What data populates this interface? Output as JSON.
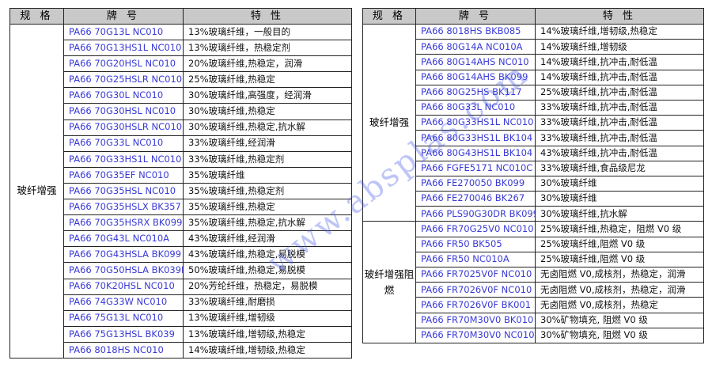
{
  "headers": {
    "spec": "规 格",
    "grade": "牌 号",
    "property": "特 性"
  },
  "left": {
    "category": "玻纤增强",
    "rows": [
      [
        "PA66 70G13L NC010",
        "13%玻璃纤维，一般目的"
      ],
      [
        "PA66 70G13HS1L NC010",
        "13%玻璃纤维，热稳定剂"
      ],
      [
        "PA66 70G20HSL NC010",
        "20%玻璃纤维,热稳定，润滑"
      ],
      [
        "PA66 70G25HSLR NC010",
        "25%玻璃纤维,热稳定"
      ],
      [
        "PA66 70G30L NC010",
        "30%玻璃纤维,高强度，经润滑"
      ],
      [
        "PA66 70G30HSL NC010",
        "30%玻璃纤维,热稳定"
      ],
      [
        "PA66 70G30HSLR NC010",
        "30%玻璃纤维,热稳定,抗水解"
      ],
      [
        "PA66 70G33L NC010",
        "33%玻璃纤维,经润滑"
      ],
      [
        "PA66 70G33HS1L NC010",
        "33%玻璃纤维,热稳定剂"
      ],
      [
        "PA66 70G35EF NC010",
        "35%玻璃纤维"
      ],
      [
        "PA66 70G35HSL NC010",
        "35%玻璃纤维,热稳定剂"
      ],
      [
        "PA66 70G35HSLX BK357",
        "35%玻璃纤维,热稳定"
      ],
      [
        "PA66 70G35HSRX BK099",
        "35%玻璃纤维,热稳定,抗水解"
      ],
      [
        "PA66 70G43L NC010A",
        "43%玻璃纤维,经润滑"
      ],
      [
        "PA66 70G43HSLA BK099",
        "43%玻璃纤维,热稳定,易脱模"
      ],
      [
        "PA66 70G50HSLA BK039B",
        "50%玻璃纤维,热稳定,易脱模"
      ],
      [
        "PA66 70K20HSL NC010",
        "20%芳纶纤维，热稳定，易脱模"
      ],
      [
        "PA66 74G33W NC010",
        "33%玻璃纤维,耐磨损"
      ],
      [
        "PA66 75G13L NC010",
        "13%玻璃纤维,增韧级"
      ],
      [
        "PA66 75G13HSL BK039",
        "13%玻璃纤维,增韧级,热稳定"
      ],
      [
        "PA66 8018HS NC010",
        "14%玻璃纤维,增韧级,热稳定"
      ]
    ]
  },
  "right": {
    "groups": [
      {
        "category": "玻纤增强",
        "rows": [
          [
            "PA66 8018HS BKB085",
            "14%玻璃纤维,增韧级,热稳定"
          ],
          [
            "PA66 80G14A NC010A",
            "14%玻璃纤维,增韧级"
          ],
          [
            "PA66 80G14AHS NC010",
            "14%玻璃纤维,抗冲击,耐低温"
          ],
          [
            "PA66 80G14AHS BK099",
            "14%玻璃纤维,抗冲击,耐低温"
          ],
          [
            "PA66 80G25HS BK117",
            "25%玻璃纤维,抗冲击,耐低温"
          ],
          [
            "PA66 80G33L NC010",
            "33%玻璃纤维,抗冲击,耐低温"
          ],
          [
            "PA66 80G33HS1L NC010",
            "33%玻璃纤维,抗冲击,耐低温"
          ],
          [
            "PA66 80G33HS1L BK104",
            "33%玻璃纤维,抗冲击,耐低温"
          ],
          [
            "PA66 80G43HS1L BK104",
            "43%玻璃纤维,抗冲击,耐低温"
          ],
          [
            "PA66 FGFE5171 NC010C",
            "33%玻璃纤维,食品级尼龙"
          ],
          [
            "PA66 FE270050 BK099",
            "30%玻璃纤维"
          ],
          [
            "PA66 FE270046 BK267",
            "30%玻璃纤维"
          ],
          [
            "PA66 PLS90G30DR BK099",
            "30%玻璃纤维,抗水解"
          ]
        ]
      },
      {
        "category": "玻纤增强阻燃",
        "rows": [
          [
            "PA66 FR70G25V0 NC010",
            "25%玻璃纤维,热稳定，阻燃 V0 级"
          ],
          [
            "PA66 FR50 BK505",
            "25%玻璃纤维,阻燃 V0 级"
          ],
          [
            "PA66 FR50 NC010A",
            "25%玻璃纤维,阻燃 V0 级"
          ],
          [
            "PA66 FR7025V0F NC010",
            "无卤阻燃 V0,成核剂，热稳定，润滑"
          ],
          [
            "PA66 FR7026V0F NC010",
            "无卤阻燃 V0,成核剂，热稳定，润滑"
          ],
          [
            "PA66 FR7026V0F BK001",
            "无卤阻燃 V0,成核剂，热稳定"
          ],
          [
            "PA66 FR70M30V0 BK010",
            "30%矿物填充, 阻燃 V0 级"
          ],
          [
            "PA66 FR70M30V0 NC010",
            "30%矿物填充, 阻燃 V0 级"
          ]
        ]
      }
    ]
  },
  "watermark": "www.absplas.com"
}
